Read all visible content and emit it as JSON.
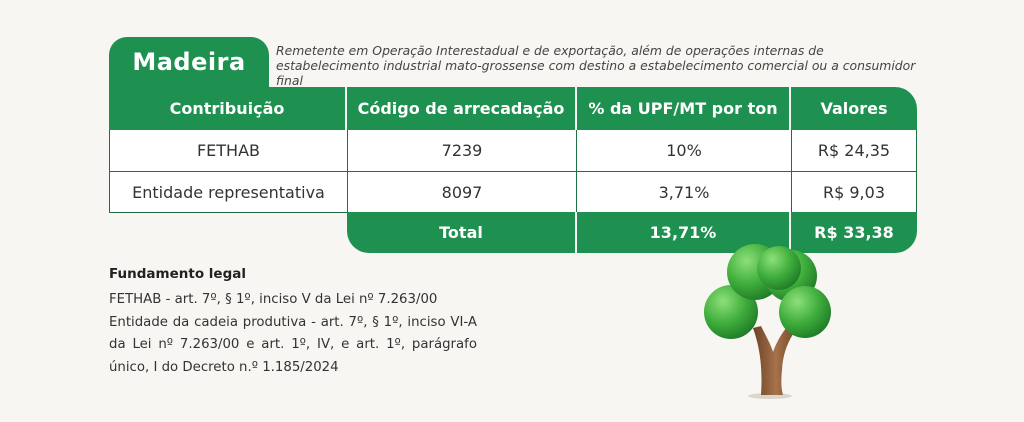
{
  "title": "Madeira",
  "description": "Remetente em Operação Interestadual e de exportação, além de operações internas de estabelecimento industrial mato-grossense com destino a estabelecimento comercial ou a consumidor final",
  "table": {
    "headers": [
      "Contribuição",
      "Código de arrecadação",
      "% da UPF/MT por ton",
      "Valores"
    ],
    "rows": [
      [
        "FETHAB",
        "7239",
        "10%",
        "R$ 24,35"
      ],
      [
        "Entidade representativa",
        "8097",
        "3,71%",
        "R$ 9,03"
      ]
    ],
    "total": {
      "label": "Total",
      "percent": "13,71%",
      "value": "R$ 33,38"
    }
  },
  "legal": {
    "title": "Fundamento legal",
    "lines": [
      "FETHAB - art. 7º, § 1º, inciso V da Lei nº 7.263/00",
      "Entidade da cadeia produtiva - art. 7º, § 1º, inciso VI-A da Lei nº 7.263/00 e art. 1º, IV, e art. 1º, parágrafo único, I do Decreto n.º 1.185/2024"
    ]
  },
  "colors": {
    "accent": "#1e9150",
    "background": "#f7f6f2"
  },
  "icons": {
    "illustration": "tree-icon"
  }
}
